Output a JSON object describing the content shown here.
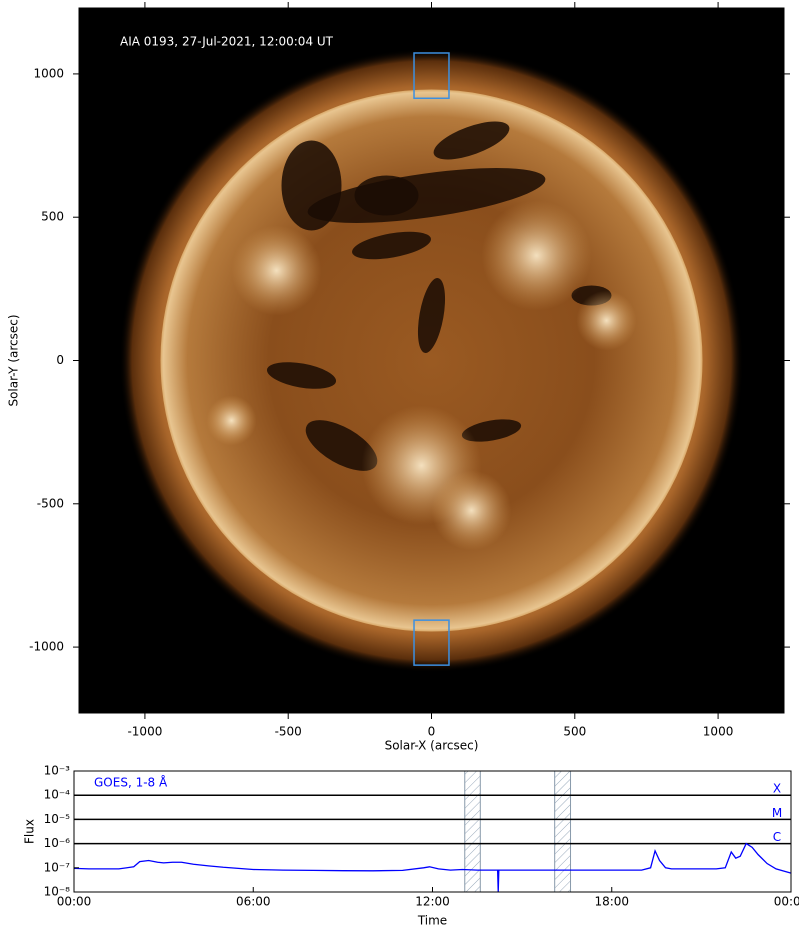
{
  "chart_data": [
    {
      "type": "image",
      "annotation": "AIA 0193, 27-Jul-2021, 12:00:04 UT",
      "x_label": "Solar-X (arcsec)",
      "y_label": "Solar-Y (arcsec)",
      "xlim": [
        -1230,
        1230
      ],
      "ylim": [
        -1230,
        1230
      ],
      "xticks": [
        -1000,
        -500,
        0,
        500,
        1000
      ],
      "yticks": [
        -1000,
        -500,
        0,
        500,
        1000
      ],
      "boxes": [
        {
          "x": [
            -61,
            61
          ],
          "y": [
            915,
            1073
          ]
        },
        {
          "x": [
            -61,
            61
          ],
          "y": [
            -1063,
            -906
          ]
        }
      ],
      "box_color": "#3c8fe0"
    },
    {
      "type": "line",
      "x_label": "Time",
      "y_label": "Flux",
      "ylog": true,
      "xlim": [
        0,
        24
      ],
      "ylim": [
        1e-08,
        0.001
      ],
      "xticks": [
        {
          "value": 0,
          "label": "00:00"
        },
        {
          "value": 6,
          "label": "06:00"
        },
        {
          "value": 12,
          "label": "12:00"
        },
        {
          "value": 18,
          "label": "18:00"
        },
        {
          "value": 24,
          "label": "00:00"
        }
      ],
      "yticks": [
        {
          "value": 1e-08,
          "label": "10⁻⁸"
        },
        {
          "value": 1e-07,
          "label": "10⁻⁷"
        },
        {
          "value": 1e-06,
          "label": "10⁻⁶"
        },
        {
          "value": 1e-05,
          "label": "10⁻⁵"
        },
        {
          "value": 0.0001,
          "label": "10⁻⁴"
        },
        {
          "value": 0.001,
          "label": "10⁻³"
        }
      ],
      "levels": [
        {
          "value": 0.0001,
          "label": "X"
        },
        {
          "value": 1e-05,
          "label": "M"
        },
        {
          "value": 1e-06,
          "label": "C"
        }
      ],
      "spans": [
        [
          13.08,
          13.6
        ],
        [
          16.09,
          16.62
        ]
      ],
      "series": [
        {
          "name": "GOES, 1-8 Å",
          "color": "#0000ff",
          "x": [
            0,
            0.5,
            1,
            1.5,
            2,
            2.2,
            2.5,
            2.8,
            3,
            3.3,
            3.6,
            4,
            4.5,
            5,
            5.5,
            6,
            7,
            8,
            9,
            10,
            11,
            11.7,
            11.9,
            12.2,
            12.6,
            13,
            13.5,
            14,
            14.18,
            14.2,
            14.22,
            14.5,
            15,
            16,
            17,
            18,
            19,
            19.3,
            19.45,
            19.6,
            19.8,
            20,
            20.5,
            21,
            21.5,
            21.8,
            22,
            22.15,
            22.3,
            22.5,
            22.7,
            22.9,
            23.2,
            23.5,
            24
          ],
          "values": [
            9.5e-08,
            9e-08,
            9e-08,
            9e-08,
            1.1e-07,
            1.8e-07,
            2e-07,
            1.7e-07,
            1.6e-07,
            1.7e-07,
            1.7e-07,
            1.4e-07,
            1.2e-07,
            1.05e-07,
            9.5e-08,
            8.5e-08,
            8e-08,
            7.8e-08,
            7.6e-08,
            7.5e-08,
            7.8e-08,
            1e-07,
            1.1e-07,
            9e-08,
            8e-08,
            8.5e-08,
            8e-08,
            8e-08,
            8e-08,
            1e-08,
            8e-08,
            8e-08,
            8e-08,
            8e-08,
            8e-08,
            8e-08,
            8e-08,
            1e-07,
            5e-07,
            2e-07,
            1e-07,
            9e-08,
            9e-08,
            9e-08,
            9e-08,
            1e-07,
            4.5e-07,
            2.5e-07,
            3e-07,
            1e-06,
            7e-07,
            3.5e-07,
            1.5e-07,
            9e-08,
            6e-08
          ]
        }
      ]
    }
  ]
}
